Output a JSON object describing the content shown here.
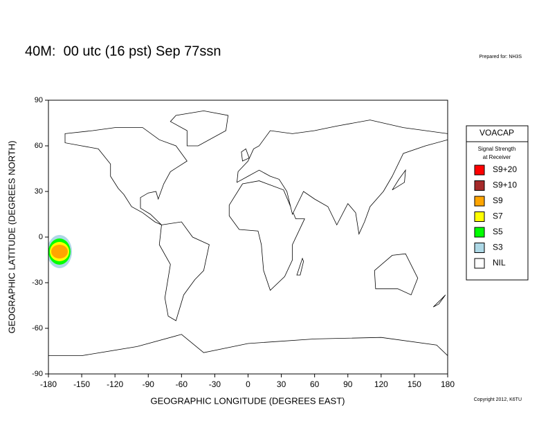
{
  "chart_data": {
    "type": "map",
    "title": "40M:  00 utc (16 pst) Sep 77ssn",
    "prepared_for": "Prepared for: NH3S",
    "copyright": "Copyright 2012, K6TU",
    "x_label": "GEOGRAPHIC LONGITUDE (DEGREES EAST)",
    "y_label": "GEOGRAPHIC LATITUDE (DEGREES NORTH)",
    "xlim": [
      -180,
      180
    ],
    "xticks": [
      -180,
      -150,
      -120,
      -90,
      -60,
      -30,
      0,
      30,
      60,
      90,
      120,
      150,
      180
    ],
    "ylim": [
      -90,
      90
    ],
    "yticks": [
      -90,
      -60,
      -30,
      0,
      30,
      60,
      90
    ],
    "legend": {
      "title": "VOACAP",
      "subtitle": [
        "Signal Strength",
        "at Receiver"
      ],
      "items": [
        {
          "name": "S9+20",
          "color": "#ff0000"
        },
        {
          "name": "S9+10",
          "color": "#a52a2a"
        },
        {
          "name": "S9",
          "color": "#ffa500"
        },
        {
          "name": "S7",
          "color": "#ffff00"
        },
        {
          "name": "S5",
          "color": "#00ff00"
        },
        {
          "name": "S3",
          "color": "#add8e6"
        },
        {
          "name": "NIL",
          "color": "#ffffff"
        }
      ]
    }
  }
}
